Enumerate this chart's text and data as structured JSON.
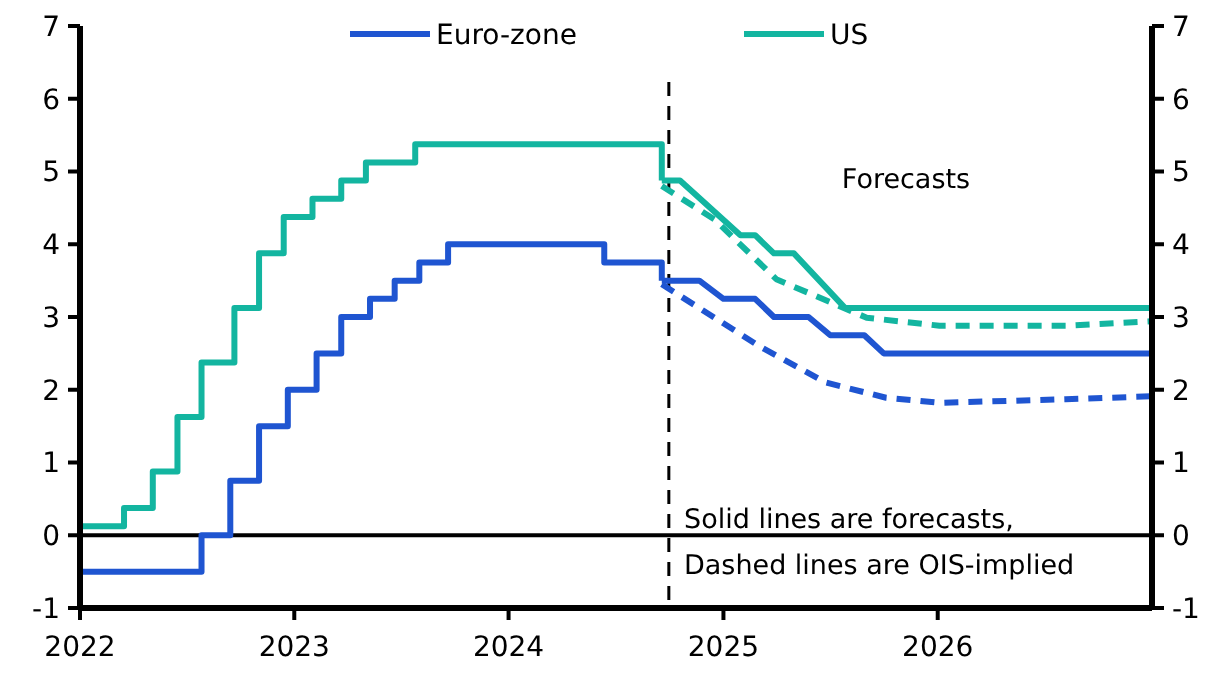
{
  "chart_data": {
    "type": "line",
    "legend": "top",
    "xlim": [
      "2022-01-01",
      "2027-01-01"
    ],
    "xticks": [
      {
        "value": "2022-01-01",
        "label": "2022"
      },
      {
        "value": "2023-01-01",
        "label": "2023"
      },
      {
        "value": "2024-01-01",
        "label": "2024"
      },
      {
        "value": "2025-01-01",
        "label": "2025"
      },
      {
        "value": "2026-01-01",
        "label": "2026"
      }
    ],
    "ylim": [
      -1,
      7
    ],
    "yticks": [
      -1,
      0,
      1,
      2,
      3,
      4,
      5,
      6,
      7
    ],
    "y2lim": [
      -1,
      7
    ],
    "y2ticks": [
      -1,
      0,
      1,
      2,
      3,
      4,
      5,
      6,
      7
    ],
    "series": [
      {
        "name": "Euro-zone",
        "type": "step",
        "color": "#1f55d1",
        "x": [
          "2022-01-01",
          "2022-07-27",
          "2022-09-14",
          "2022-11-02",
          "2022-12-21",
          "2023-02-08",
          "2023-03-22",
          "2023-05-10",
          "2023-06-21",
          "2023-08-02",
          "2023-09-20",
          "2024-06-12",
          "2024-09-18"
        ],
        "values": [
          -0.5,
          0,
          0.75,
          1.5,
          2,
          2.5,
          3,
          3.25,
          3.5,
          3.75,
          4,
          3.75,
          3.5
        ]
      },
      {
        "name": "US",
        "type": "step",
        "color": "#13b5a0",
        "x": [
          "2022-01-01",
          "2022-03-17",
          "2022-05-05",
          "2022-06-16",
          "2022-07-27",
          "2022-09-21",
          "2022-11-02",
          "2022-12-14",
          "2023-02-01",
          "2023-03-22",
          "2023-05-03",
          "2023-07-26",
          "2024-09-18"
        ],
        "values": [
          0.125,
          0.375,
          0.875,
          1.625,
          2.375,
          3.125,
          3.875,
          4.375,
          4.625,
          4.875,
          5.125,
          5.375,
          4.875
        ]
      },
      {
        "color": "#1f55d1",
        "line_style": "solid",
        "x": [
          "2024-09-18",
          "2024-11-21",
          "2025-01-01",
          "2025-02-24",
          "2025-03-28",
          "2025-05-26",
          "2025-07-02",
          "2025-08-29",
          "2025-10-01",
          "2027-01-01"
        ],
        "values": [
          3.5,
          3.5,
          3.25,
          3.25,
          3,
          3,
          2.75,
          2.75,
          2.5,
          2.5
        ]
      },
      {
        "color": "#13b5a0",
        "line_style": "solid",
        "x": [
          "2024-09-18",
          "2024-10-19",
          "2025-01-30",
          "2025-02-24",
          "2025-03-28",
          "2025-05-01",
          "2025-07-27",
          "2027-01-01"
        ],
        "values": [
          4.875,
          4.875,
          4.125,
          4.125,
          3.875,
          3.875,
          3.125,
          3.125
        ]
      },
      {
        "color": "#1f55d1",
        "line_style": "dashed",
        "x": [
          "2024-09-18",
          "2025-03-03",
          "2025-06-24",
          "2025-10-05",
          "2026-01-04",
          "2026-08-07",
          "2027-01-01"
        ],
        "values": [
          3.45,
          2.6,
          2.1,
          1.89,
          1.82,
          1.87,
          1.91
        ]
      },
      {
        "color": "#13b5a0",
        "line_style": "dashed",
        "x": [
          "2024-09-18",
          "2024-12-17",
          "2025-04-01",
          "2025-09-02",
          "2026-01-04",
          "2026-08-07",
          "2027-01-01"
        ],
        "values": [
          4.8,
          4.34,
          3.52,
          2.99,
          2.88,
          2.88,
          2.94
        ]
      }
    ],
    "ref_lines": [
      {
        "axis": "y",
        "value": 0,
        "color": "#000000",
        "line_style": "solid"
      },
      {
        "axis": "x",
        "value": "2024-09-30",
        "color": "#000000",
        "line_style": "dashed"
      }
    ],
    "annotations": [
      "Forecasts",
      "Solid lines are forecasts,\nDashed lines are OIS-implied"
    ]
  }
}
